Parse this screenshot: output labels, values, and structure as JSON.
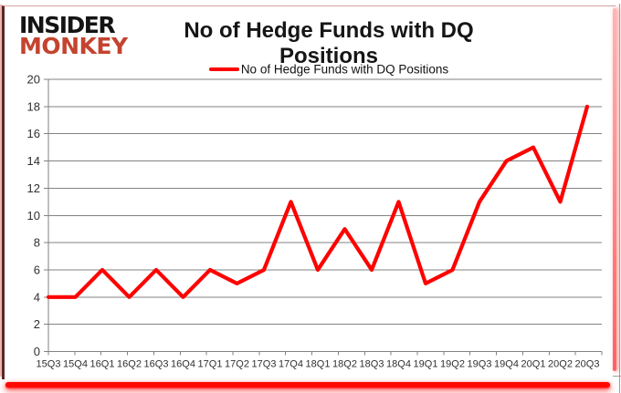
{
  "logo": {
    "line1": "INSIDER",
    "line2": "MONKEY",
    "color_top": "#141414",
    "color_bottom": "#c4432f"
  },
  "header": {
    "title": "No of Hedge Funds with DQ Positions"
  },
  "legend": {
    "label": "No of Hedge Funds with DQ Positions",
    "swatch_color": "#ff0000"
  },
  "chart_data": {
    "type": "line",
    "title": "No of Hedge Funds with DQ Positions",
    "categories": [
      "15Q3",
      "15Q4",
      "16Q1",
      "16Q2",
      "16Q3",
      "16Q4",
      "17Q1",
      "17Q2",
      "17Q3",
      "17Q4",
      "18Q1",
      "18Q2",
      "18Q3",
      "18Q4",
      "19Q1",
      "19Q2",
      "19Q3",
      "19Q4",
      "20Q1",
      "20Q2",
      "20Q3"
    ],
    "series": [
      {
        "name": "No of Hedge Funds with DQ Positions",
        "values": [
          4,
          4,
          6,
          4,
          6,
          4,
          6,
          5,
          6,
          11,
          6,
          9,
          6,
          11,
          5,
          6,
          11,
          14,
          15,
          11,
          18
        ]
      }
    ],
    "xlabel": "",
    "ylabel": "",
    "ylim": [
      0,
      20
    ],
    "ytick_step": 2,
    "yticks": [
      0,
      2,
      4,
      6,
      8,
      10,
      12,
      14,
      16,
      18,
      20
    ],
    "grid": true,
    "legend_position": "top",
    "colors": {
      "line": "#fe0000",
      "grid": "#828282",
      "axis": "#828282",
      "tick_label": "#303030"
    }
  }
}
